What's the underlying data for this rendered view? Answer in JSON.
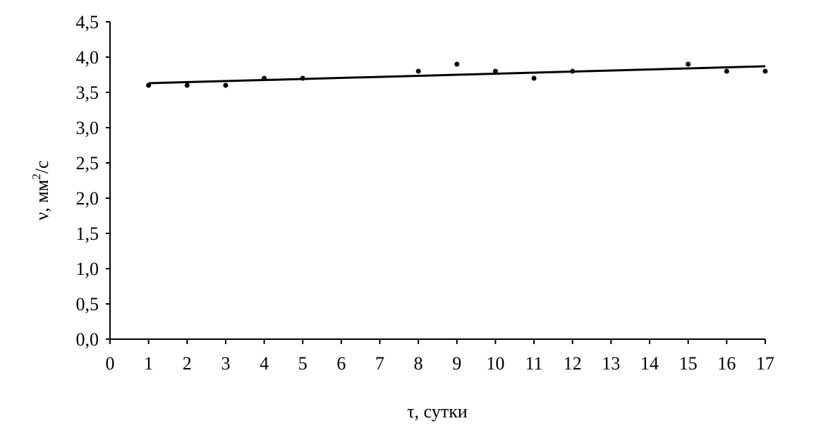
{
  "chart_data": {
    "type": "scatter",
    "title": "",
    "xlabel": "τ, сутки",
    "ylabel_parts": {
      "main": "ν, мм",
      "sup": "2",
      "tail": "/с"
    },
    "xlim": [
      0,
      17
    ],
    "ylim": [
      0,
      4.5
    ],
    "xticks": [
      0,
      1,
      2,
      3,
      4,
      5,
      6,
      7,
      8,
      9,
      10,
      11,
      12,
      13,
      14,
      15,
      16,
      17
    ],
    "xtick_labels": [
      "0",
      "1",
      "2",
      "3",
      "4",
      "5",
      "6",
      "7",
      "8",
      "9",
      "10",
      "11",
      "12",
      "13",
      "14",
      "15",
      "16",
      "17"
    ],
    "yticks": [
      0,
      0.5,
      1.0,
      1.5,
      2.0,
      2.5,
      3.0,
      3.5,
      4.0,
      4.5
    ],
    "ytick_labels": [
      "0,0",
      "0,5",
      "1,0",
      "1,5",
      "2,0",
      "2,5",
      "3,0",
      "3,5",
      "4,0",
      "4,5"
    ],
    "grid": false,
    "series": [
      {
        "x": [
          1,
          2,
          3,
          4,
          5,
          8,
          9,
          10,
          11,
          12,
          15,
          16,
          17
        ],
        "y": [
          3.6,
          3.6,
          3.6,
          3.7,
          3.7,
          3.8,
          3.9,
          3.8,
          3.7,
          3.8,
          3.9,
          3.8,
          3.8
        ]
      }
    ],
    "trendline": {
      "type": "linear",
      "x": [
        1,
        17
      ],
      "y": [
        3.63,
        3.87
      ]
    }
  }
}
